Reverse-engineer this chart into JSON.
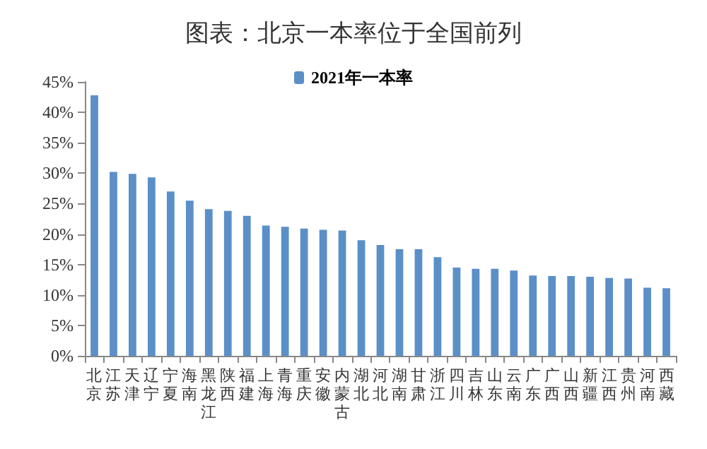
{
  "chart_data": {
    "type": "bar",
    "title": "图表：北京一本率位于全国前列",
    "categories": [
      "北京",
      "江苏",
      "天津",
      "辽宁",
      "宁夏",
      "海南",
      "黑龙江",
      "陕西",
      "福建",
      "上海",
      "青海",
      "重庆",
      "安徽",
      "内蒙古",
      "湖北",
      "河北",
      "湖南",
      "甘肃",
      "浙江",
      "四川",
      "吉林",
      "山东",
      "云南",
      "广东",
      "广西",
      "山西",
      "新疆",
      "江西",
      "贵州",
      "河南",
      "西藏"
    ],
    "series": [
      {
        "name": "2021年一本率",
        "color": "#5b8fc7",
        "values": [
          42.8,
          30.2,
          29.9,
          29.3,
          27.0,
          25.5,
          24.1,
          23.8,
          23.0,
          21.4,
          21.2,
          20.9,
          20.7,
          20.6,
          19.0,
          18.2,
          17.5,
          17.5,
          16.2,
          14.5,
          14.3,
          14.3,
          14.0,
          13.2,
          13.1,
          13.1,
          13.0,
          12.8,
          12.7,
          11.2,
          11.1
        ]
      }
    ],
    "ylim": [
      0,
      45
    ],
    "yticks": [
      {
        "value": 0,
        "label": "0%"
      },
      {
        "value": 5,
        "label": "5%"
      },
      {
        "value": 10,
        "label": "10%"
      },
      {
        "value": 15,
        "label": "15%"
      },
      {
        "value": 20,
        "label": "20%"
      },
      {
        "value": 25,
        "label": "25%"
      },
      {
        "value": 30,
        "label": "30%"
      },
      {
        "value": 35,
        "label": "35%"
      },
      {
        "value": 40,
        "label": "40%"
      },
      {
        "value": 45,
        "label": "45%"
      }
    ],
    "grid": false,
    "legend": "top"
  }
}
